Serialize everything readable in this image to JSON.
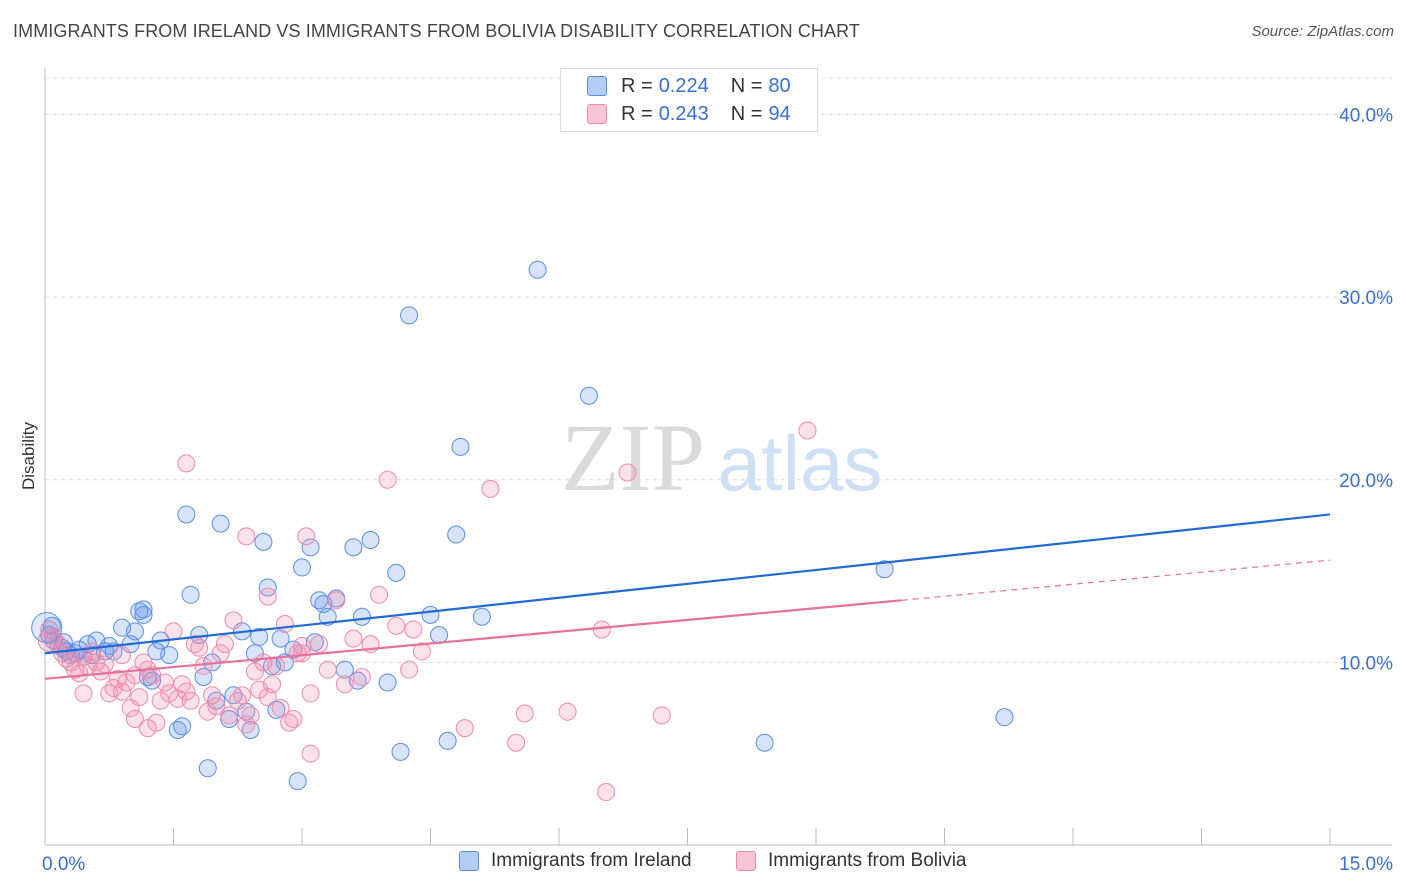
{
  "title": "IMMIGRANTS FROM IRELAND VS IMMIGRANTS FROM BOLIVIA DISABILITY CORRELATION CHART",
  "source": "Source: ZipAtlas.com",
  "watermark": {
    "zip": "ZIP",
    "atlas": "atlas"
  },
  "legend_top": [
    {
      "r_label": "R =",
      "r_value": "0.224",
      "n_label": "N =",
      "n_value": "80"
    },
    {
      "r_label": "R =",
      "r_value": "0.243",
      "n_label": "N =",
      "n_value": "94"
    }
  ],
  "colors": {
    "ireland": "#5b8ee6",
    "bolivia": "#f08aab",
    "ireland_line": "#2369d6",
    "bolivia_line": "#e8709a",
    "tick_text": "#3a6fcf"
  },
  "chart_data": {
    "type": "scatter",
    "ylabel": "Disability",
    "xlim": [
      0,
      15
    ],
    "ylim": [
      0,
      42
    ],
    "x_tick_labels": [
      "0.0%",
      "15.0%"
    ],
    "y_ticks": [
      10,
      20,
      30,
      40
    ],
    "y_tick_labels": [
      "10.0%",
      "20.0%",
      "30.0%",
      "40.0%"
    ],
    "series": [
      {
        "name": "Immigrants from Ireland",
        "trend": {
          "x": [
            0,
            15
          ],
          "y": [
            10.5,
            18.1
          ],
          "dashed_to": null
        },
        "points": [
          [
            0.05,
            11.5
          ],
          [
            0.1,
            11.2
          ],
          [
            0.15,
            11.0
          ],
          [
            0.2,
            10.8
          ],
          [
            0.25,
            10.6
          ],
          [
            0.3,
            10.4
          ],
          [
            0.35,
            10.5
          ],
          [
            0.4,
            10.7
          ],
          [
            0.45,
            10.3
          ],
          [
            0.5,
            11.0
          ],
          [
            0.55,
            10.4
          ],
          [
            0.6,
            11.2
          ],
          [
            0.7,
            10.6
          ],
          [
            0.75,
            10.9
          ],
          [
            0.8,
            10.6
          ],
          [
            0.9,
            11.9
          ],
          [
            1.0,
            11.0
          ],
          [
            1.05,
            11.7
          ],
          [
            1.1,
            12.8
          ],
          [
            1.15,
            12.6
          ],
          [
            1.2,
            9.2
          ],
          [
            1.25,
            9.0
          ],
          [
            1.3,
            10.6
          ],
          [
            1.35,
            11.2
          ],
          [
            1.45,
            10.4
          ],
          [
            1.55,
            6.3
          ],
          [
            1.6,
            6.5
          ],
          [
            1.65,
            18.1
          ],
          [
            1.7,
            13.7
          ],
          [
            1.8,
            11.5
          ],
          [
            1.85,
            9.2
          ],
          [
            1.9,
            4.2
          ],
          [
            1.95,
            10.0
          ],
          [
            2.0,
            7.9
          ],
          [
            2.05,
            17.6
          ],
          [
            2.15,
            6.9
          ],
          [
            2.2,
            8.2
          ],
          [
            2.3,
            11.7
          ],
          [
            2.35,
            7.3
          ],
          [
            2.4,
            6.3
          ],
          [
            2.45,
            10.5
          ],
          [
            2.5,
            11.4
          ],
          [
            2.55,
            16.6
          ],
          [
            2.6,
            14.1
          ],
          [
            2.65,
            9.8
          ],
          [
            2.7,
            7.4
          ],
          [
            2.75,
            11.3
          ],
          [
            2.8,
            10.0
          ],
          [
            2.9,
            10.7
          ],
          [
            2.95,
            3.5
          ],
          [
            3.0,
            15.2
          ],
          [
            3.1,
            16.3
          ],
          [
            3.15,
            11.1
          ],
          [
            3.2,
            13.4
          ],
          [
            3.25,
            13.2
          ],
          [
            3.3,
            12.5
          ],
          [
            3.4,
            13.5
          ],
          [
            3.5,
            9.6
          ],
          [
            3.6,
            16.3
          ],
          [
            3.65,
            9.0
          ],
          [
            3.7,
            12.5
          ],
          [
            3.8,
            16.7
          ],
          [
            4.1,
            14.9
          ],
          [
            4.15,
            5.1
          ],
          [
            4.5,
            12.6
          ],
          [
            4.6,
            11.5
          ],
          [
            4.7,
            5.7
          ],
          [
            4.8,
            17.0
          ],
          [
            4.85,
            21.8
          ],
          [
            5.1,
            12.5
          ],
          [
            4.25,
            29.0
          ],
          [
            5.75,
            31.5
          ],
          [
            6.35,
            24.6
          ],
          [
            8.4,
            5.6
          ],
          [
            9.8,
            15.1
          ],
          [
            11.2,
            7.0
          ],
          [
            0.08,
            12.0
          ],
          [
            0.22,
            11.1
          ],
          [
            1.15,
            12.9
          ],
          [
            4.0,
            8.9
          ]
        ]
      },
      {
        "name": "Immigrants from Bolivia",
        "trend": {
          "x": [
            0,
            10.0
          ],
          "y": [
            9.1,
            13.4
          ],
          "dashed_to": [
            15,
            15.6
          ]
        },
        "points": [
          [
            0.05,
            11.8
          ],
          [
            0.1,
            11.4
          ],
          [
            0.15,
            11.0
          ],
          [
            0.2,
            10.5
          ],
          [
            0.25,
            10.2
          ],
          [
            0.3,
            10.0
          ],
          [
            0.35,
            9.6
          ],
          [
            0.4,
            9.4
          ],
          [
            0.45,
            10.3
          ],
          [
            0.5,
            9.8
          ],
          [
            0.55,
            10.6
          ],
          [
            0.6,
            10.0
          ],
          [
            0.65,
            9.5
          ],
          [
            0.7,
            9.9
          ],
          [
            0.75,
            8.3
          ],
          [
            0.8,
            8.6
          ],
          [
            0.85,
            9.1
          ],
          [
            0.9,
            8.4
          ],
          [
            0.95,
            8.9
          ],
          [
            1.0,
            7.5
          ],
          [
            1.05,
            9.3
          ],
          [
            1.1,
            8.1
          ],
          [
            1.15,
            10.0
          ],
          [
            1.2,
            9.6
          ],
          [
            1.25,
            9.3
          ],
          [
            1.3,
            6.7
          ],
          [
            1.35,
            7.9
          ],
          [
            1.4,
            8.9
          ],
          [
            1.45,
            8.3
          ],
          [
            1.5,
            11.7
          ],
          [
            1.55,
            8.0
          ],
          [
            1.6,
            8.8
          ],
          [
            1.65,
            8.4
          ],
          [
            1.7,
            7.9
          ],
          [
            1.75,
            11.0
          ],
          [
            1.8,
            10.8
          ],
          [
            1.85,
            9.8
          ],
          [
            1.9,
            7.3
          ],
          [
            1.95,
            8.2
          ],
          [
            2.0,
            7.6
          ],
          [
            2.05,
            10.5
          ],
          [
            2.1,
            11.0
          ],
          [
            2.15,
            7.1
          ],
          [
            2.2,
            12.3
          ],
          [
            2.25,
            7.9
          ],
          [
            2.3,
            8.2
          ],
          [
            2.35,
            6.6
          ],
          [
            2.4,
            7.1
          ],
          [
            2.45,
            9.5
          ],
          [
            2.5,
            8.5
          ],
          [
            2.55,
            10.0
          ],
          [
            2.6,
            8.1
          ],
          [
            2.65,
            8.8
          ],
          [
            2.7,
            9.8
          ],
          [
            2.75,
            7.5
          ],
          [
            2.8,
            12.1
          ],
          [
            2.85,
            6.7
          ],
          [
            2.9,
            6.9
          ],
          [
            2.95,
            10.5
          ],
          [
            3.0,
            10.9
          ],
          [
            3.05,
            16.9
          ],
          [
            3.1,
            8.3
          ],
          [
            3.2,
            11.0
          ],
          [
            3.3,
            9.6
          ],
          [
            3.4,
            13.4
          ],
          [
            3.5,
            8.8
          ],
          [
            3.6,
            11.3
          ],
          [
            3.7,
            9.2
          ],
          [
            3.8,
            11.0
          ],
          [
            3.9,
            13.7
          ],
          [
            4.0,
            20.0
          ],
          [
            4.1,
            12.0
          ],
          [
            4.25,
            9.6
          ],
          [
            4.3,
            11.8
          ],
          [
            4.4,
            10.6
          ],
          [
            4.9,
            6.4
          ],
          [
            5.2,
            19.5
          ],
          [
            5.5,
            5.6
          ],
          [
            5.6,
            7.2
          ],
          [
            6.1,
            7.3
          ],
          [
            6.5,
            11.8
          ],
          [
            6.55,
            2.9
          ],
          [
            6.8,
            20.4
          ],
          [
            7.2,
            7.1
          ],
          [
            8.9,
            22.7
          ],
          [
            1.65,
            20.9
          ],
          [
            2.35,
            16.9
          ],
          [
            3.1,
            5.0
          ],
          [
            3.0,
            10.5
          ],
          [
            1.2,
            6.4
          ],
          [
            0.45,
            8.3
          ],
          [
            0.9,
            10.4
          ],
          [
            1.05,
            6.9
          ],
          [
            2.6,
            13.6
          ]
        ]
      }
    ]
  },
  "legend_bottom": [
    "Immigrants from Ireland",
    "Immigrants from Bolivia"
  ]
}
